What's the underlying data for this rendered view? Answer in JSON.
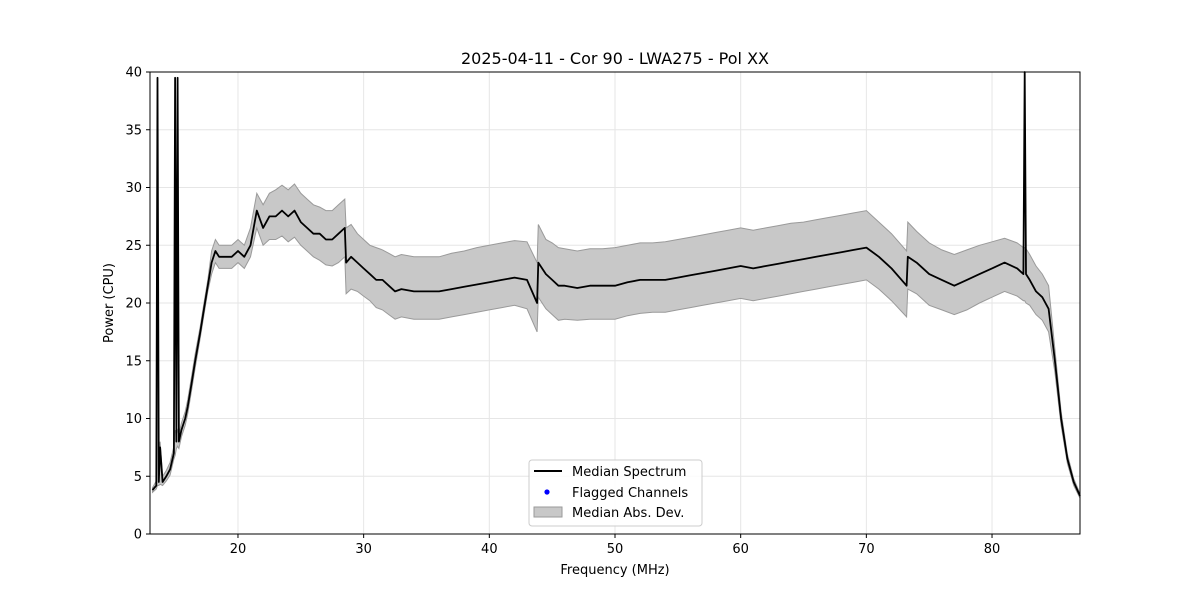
{
  "chart_data": {
    "type": "line",
    "title": "2025-04-11 - Cor 90 - LWA275 - Pol XX",
    "xlabel": "Frequency (MHz)",
    "ylabel": "Power (CPU)",
    "xlim": [
      13,
      87
    ],
    "ylim": [
      0,
      40
    ],
    "xticks": [
      20,
      30,
      40,
      50,
      60,
      70,
      80
    ],
    "yticks": [
      0,
      5,
      10,
      15,
      20,
      25,
      30,
      35,
      40
    ],
    "grid": true,
    "legend_position": "bottom-center",
    "legend": [
      "Median Spectrum",
      "Flagged Channels",
      "Median Abs. Dev."
    ],
    "colors": {
      "median": "#000000",
      "flagged": "#0000ff",
      "mad_fill": "#c8c8c8",
      "mad_edge": "#9a9a9a",
      "grid": "#e6e6e6"
    },
    "series": [
      {
        "name": "Median Spectrum",
        "x": [
          13.2,
          13.5,
          13.6,
          13.7,
          13.8,
          14.0,
          14.3,
          14.6,
          14.9,
          15.0,
          15.1,
          15.2,
          15.3,
          15.5,
          15.8,
          16.0,
          16.3,
          16.6,
          17.0,
          17.3,
          17.6,
          17.9,
          18.2,
          18.5,
          19.0,
          19.5,
          20.0,
          20.5,
          21.0,
          21.5,
          22.0,
          22.5,
          23.0,
          23.5,
          24.0,
          24.5,
          25.0,
          25.5,
          26.0,
          26.5,
          27.0,
          27.5,
          28.0,
          28.5,
          28.6,
          29.0,
          29.5,
          30.0,
          30.5,
          31.0,
          31.5,
          32.0,
          32.5,
          33.0,
          34.0,
          35.0,
          36.0,
          37.0,
          38.0,
          39.0,
          40.0,
          41.0,
          42.0,
          43.0,
          43.8,
          43.9,
          44.5,
          45.0,
          45.5,
          46.0,
          47.0,
          48.0,
          49.0,
          50.0,
          51.0,
          52.0,
          53.0,
          54.0,
          55.0,
          56.0,
          57.0,
          58.0,
          59.0,
          60.0,
          61.0,
          62.0,
          63.0,
          64.0,
          65.0,
          66.0,
          67.0,
          68.0,
          69.0,
          70.0,
          71.0,
          72.0,
          73.2,
          73.3,
          74.0,
          75.0,
          76.0,
          77.0,
          78.0,
          79.0,
          80.0,
          81.0,
          82.0,
          82.5,
          82.6,
          82.7,
          83.0,
          83.5,
          84.0,
          84.5,
          85.0,
          85.5,
          86.0,
          86.5,
          87.0
        ],
        "values": [
          3.8,
          4.2,
          39.5,
          4.5,
          7.5,
          4.5,
          5.0,
          5.6,
          7.0,
          39.5,
          8.0,
          39.5,
          8.0,
          9.0,
          10.0,
          11.0,
          13.0,
          15.0,
          17.5,
          19.5,
          21.5,
          23.5,
          24.5,
          24.0,
          24.0,
          24.0,
          24.5,
          24.0,
          25.0,
          28.0,
          26.5,
          27.5,
          27.5,
          28.0,
          27.5,
          28.0,
          27.0,
          26.5,
          26.0,
          26.0,
          25.5,
          25.5,
          26.0,
          26.5,
          23.5,
          24.0,
          23.5,
          23.0,
          22.5,
          22.0,
          22.0,
          21.5,
          21.0,
          21.2,
          21.0,
          21.0,
          21.0,
          21.2,
          21.4,
          21.6,
          21.8,
          22.0,
          22.2,
          22.0,
          20.0,
          23.5,
          22.5,
          22.0,
          21.5,
          21.5,
          21.3,
          21.5,
          21.5,
          21.5,
          21.8,
          22.0,
          22.0,
          22.0,
          22.2,
          22.4,
          22.6,
          22.8,
          23.0,
          23.2,
          23.0,
          23.2,
          23.4,
          23.6,
          23.8,
          24.0,
          24.2,
          24.4,
          24.6,
          24.8,
          24.0,
          23.0,
          21.5,
          24.0,
          23.5,
          22.5,
          22.0,
          21.5,
          22.0,
          22.5,
          23.0,
          23.5,
          23.0,
          22.5,
          40.0,
          22.5,
          22.0,
          21.0,
          20.5,
          19.5,
          15.0,
          10.0,
          6.5,
          4.5,
          3.3
        ]
      },
      {
        "name": "Median Abs. Dev.",
        "x": [
          13.2,
          13.5,
          13.6,
          13.7,
          13.8,
          14.0,
          14.3,
          14.6,
          14.9,
          15.0,
          15.1,
          15.2,
          15.3,
          15.5,
          15.8,
          16.0,
          16.3,
          16.6,
          17.0,
          17.3,
          17.6,
          17.9,
          18.2,
          18.5,
          19.0,
          19.5,
          20.0,
          20.5,
          21.0,
          21.5,
          22.0,
          22.5,
          23.0,
          23.5,
          24.0,
          24.5,
          25.0,
          25.5,
          26.0,
          26.5,
          27.0,
          27.5,
          28.0,
          28.5,
          28.6,
          29.0,
          29.5,
          30.0,
          30.5,
          31.0,
          31.5,
          32.0,
          32.5,
          33.0,
          34.0,
          35.0,
          36.0,
          37.0,
          38.0,
          39.0,
          40.0,
          41.0,
          42.0,
          43.0,
          43.8,
          43.9,
          44.5,
          45.0,
          45.5,
          46.0,
          47.0,
          48.0,
          49.0,
          50.0,
          51.0,
          52.0,
          53.0,
          54.0,
          55.0,
          56.0,
          57.0,
          58.0,
          59.0,
          60.0,
          61.0,
          62.0,
          63.0,
          64.0,
          65.0,
          66.0,
          67.0,
          68.0,
          69.0,
          70.0,
          71.0,
          72.0,
          73.2,
          73.3,
          74.0,
          75.0,
          76.0,
          77.0,
          78.0,
          79.0,
          80.0,
          81.0,
          82.0,
          82.5,
          82.6,
          82.7,
          83.0,
          83.5,
          84.0,
          84.5,
          85.0,
          85.5,
          86.0,
          86.5,
          87.0
        ],
        "upper": [
          4.0,
          4.6,
          35.5,
          5.0,
          8.0,
          5.0,
          5.5,
          6.2,
          7.6,
          9.0,
          8.6,
          9.0,
          8.6,
          9.6,
          10.6,
          11.6,
          13.6,
          15.6,
          18.0,
          20.0,
          22.0,
          24.5,
          25.5,
          25.0,
          25.0,
          25.0,
          25.5,
          25.0,
          26.5,
          29.5,
          28.5,
          29.5,
          29.8,
          30.2,
          29.8,
          30.3,
          29.5,
          29.0,
          28.5,
          28.3,
          28.0,
          28.0,
          28.5,
          29.0,
          26.5,
          26.8,
          26.0,
          25.5,
          25.0,
          24.8,
          24.6,
          24.3,
          24.0,
          24.2,
          24.0,
          24.0,
          24.0,
          24.3,
          24.5,
          24.8,
          25.0,
          25.2,
          25.4,
          25.3,
          23.5,
          26.8,
          25.5,
          25.2,
          24.8,
          24.7,
          24.5,
          24.7,
          24.7,
          24.8,
          25.0,
          25.2,
          25.2,
          25.3,
          25.5,
          25.7,
          25.9,
          26.1,
          26.3,
          26.5,
          26.3,
          26.5,
          26.7,
          26.9,
          27.0,
          27.2,
          27.4,
          27.6,
          27.8,
          28.0,
          27.0,
          26.0,
          24.5,
          27.0,
          26.2,
          25.2,
          24.6,
          24.2,
          24.6,
          25.0,
          25.3,
          25.6,
          25.2,
          24.8,
          24.8,
          24.7,
          24.2,
          23.2,
          22.5,
          21.5,
          16.0,
          10.6,
          6.9,
          4.8,
          3.5
        ],
        "lower": [
          3.6,
          3.9,
          4.2,
          4.2,
          4.3,
          4.2,
          4.6,
          5.1,
          6.5,
          6.8,
          7.4,
          7.6,
          7.4,
          8.4,
          9.4,
          10.4,
          12.4,
          14.4,
          17.0,
          19.0,
          21.0,
          22.5,
          23.5,
          23.0,
          23.0,
          23.0,
          23.5,
          23.0,
          24.0,
          26.5,
          25.0,
          25.5,
          25.5,
          25.8,
          25.3,
          25.7,
          25.0,
          24.5,
          24.0,
          23.7,
          23.3,
          23.2,
          23.5,
          24.0,
          20.8,
          21.2,
          21.0,
          20.6,
          20.2,
          19.6,
          19.4,
          19.0,
          18.6,
          18.8,
          18.6,
          18.6,
          18.6,
          18.8,
          19.0,
          19.2,
          19.4,
          19.6,
          19.8,
          19.5,
          17.5,
          20.5,
          19.5,
          19.0,
          18.5,
          18.6,
          18.5,
          18.6,
          18.6,
          18.6,
          18.9,
          19.1,
          19.2,
          19.2,
          19.4,
          19.6,
          19.8,
          20.0,
          20.2,
          20.4,
          20.2,
          20.4,
          20.6,
          20.8,
          21.0,
          21.2,
          21.4,
          21.6,
          21.8,
          22.0,
          21.2,
          20.2,
          18.8,
          21.2,
          20.8,
          19.8,
          19.4,
          19.0,
          19.4,
          20.0,
          20.5,
          21.0,
          20.6,
          20.2,
          20.2,
          20.0,
          19.8,
          19.0,
          18.5,
          17.5,
          14.0,
          9.4,
          6.1,
          4.2,
          3.1
        ]
      },
      {
        "name": "Flagged Channels",
        "x": [],
        "values": []
      }
    ]
  }
}
